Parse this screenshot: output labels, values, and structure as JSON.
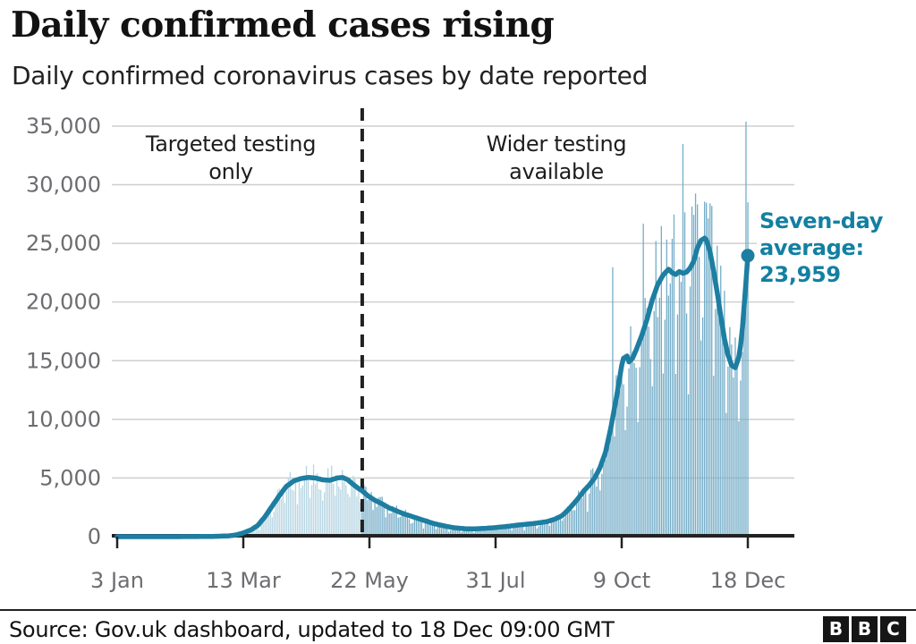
{
  "header": {
    "title": "Daily confirmed cases rising",
    "subtitle": "Daily confirmed coronavirus cases by date reported"
  },
  "annotations": {
    "targeted": {
      "line1": "Targeted testing",
      "line2": "only"
    },
    "wider": {
      "line1": "Wider testing",
      "line2": "available"
    },
    "seven_day": {
      "line1": "Seven-day",
      "line2": "average:",
      "line3": "23,959"
    }
  },
  "footer": {
    "source": "Source: Gov.uk dashboard, updated to 18 Dec 09:00 GMT",
    "logo": [
      "B",
      "B",
      "C"
    ]
  },
  "colors": {
    "accent_teal": "#1380A1",
    "line": "#1d7ea1",
    "bar_light": "#b7d6e3",
    "bar_dark": "#74adc8",
    "grid": "#cfcfcf",
    "axis": "#222222",
    "label_gray": "#6d6d71"
  },
  "chart_data": {
    "type": "bar",
    "title": "Daily confirmed cases rising",
    "subtitle": "Daily confirmed coronavirus cases by date reported",
    "grid": true,
    "x_axis": {
      "start_date": "3 Jan",
      "end_date": "18 Dec",
      "ticks": [
        {
          "label": "3 Jan",
          "day": 0
        },
        {
          "label": "13 Mar",
          "day": 70
        },
        {
          "label": "22 May",
          "day": 140
        },
        {
          "label": "31 Jul",
          "day": 210
        },
        {
          "label": "9 Oct",
          "day": 280
        },
        {
          "label": "18 Dec",
          "day": 350
        }
      ]
    },
    "y_axis": {
      "min": 0,
      "max": 35000,
      "ticks": [
        {
          "label": "0",
          "value": 0
        },
        {
          "label": "5,000",
          "value": 5000
        },
        {
          "label": "10,000",
          "value": 10000
        },
        {
          "label": "15,000",
          "value": 15000
        },
        {
          "label": "20,000",
          "value": 20000
        },
        {
          "label": "25,000",
          "value": 25000
        },
        {
          "label": "30,000",
          "value": 30000
        },
        {
          "label": "35,000",
          "value": 35000
        }
      ]
    },
    "divider_day": 136,
    "final_value": 23959,
    "series": [
      {
        "name": "Seven-day average",
        "type": "line",
        "anchors": [
          [
            0,
            0
          ],
          [
            30,
            0
          ],
          [
            45,
            10
          ],
          [
            55,
            30
          ],
          [
            62,
            70
          ],
          [
            66,
            150
          ],
          [
            70,
            320
          ],
          [
            74,
            560
          ],
          [
            78,
            950
          ],
          [
            82,
            1700
          ],
          [
            86,
            2600
          ],
          [
            90,
            3500
          ],
          [
            94,
            4300
          ],
          [
            98,
            4750
          ],
          [
            102,
            4950
          ],
          [
            106,
            5050
          ],
          [
            110,
            5000
          ],
          [
            114,
            4850
          ],
          [
            118,
            4800
          ],
          [
            122,
            5000
          ],
          [
            125,
            5050
          ],
          [
            128,
            4850
          ],
          [
            131,
            4450
          ],
          [
            134,
            4100
          ],
          [
            136,
            3900
          ],
          [
            139,
            3500
          ],
          [
            143,
            3100
          ],
          [
            147,
            2800
          ],
          [
            151,
            2450
          ],
          [
            155,
            2200
          ],
          [
            159,
            1950
          ],
          [
            163,
            1750
          ],
          [
            167,
            1550
          ],
          [
            171,
            1350
          ],
          [
            175,
            1150
          ],
          [
            179,
            1000
          ],
          [
            183,
            870
          ],
          [
            187,
            760
          ],
          [
            191,
            700
          ],
          [
            195,
            660
          ],
          [
            199,
            670
          ],
          [
            203,
            700
          ],
          [
            207,
            740
          ],
          [
            211,
            790
          ],
          [
            215,
            850
          ],
          [
            219,
            920
          ],
          [
            223,
            1000
          ],
          [
            227,
            1060
          ],
          [
            231,
            1120
          ],
          [
            235,
            1200
          ],
          [
            239,
            1300
          ],
          [
            243,
            1500
          ],
          [
            247,
            1800
          ],
          [
            251,
            2400
          ],
          [
            255,
            3100
          ],
          [
            259,
            3900
          ],
          [
            262,
            4400
          ],
          [
            265,
            5000
          ],
          [
            268,
            5900
          ],
          [
            271,
            7200
          ],
          [
            274,
            9300
          ],
          [
            277,
            11800
          ],
          [
            280,
            14600
          ],
          [
            281,
            15200
          ],
          [
            283,
            15400
          ],
          [
            284,
            14900
          ],
          [
            286,
            15200
          ],
          [
            288,
            15900
          ],
          [
            291,
            17100
          ],
          [
            294,
            18500
          ],
          [
            297,
            20200
          ],
          [
            300,
            21500
          ],
          [
            303,
            22300
          ],
          [
            306,
            22800
          ],
          [
            308,
            22500
          ],
          [
            310,
            22350
          ],
          [
            312,
            22600
          ],
          [
            314,
            22450
          ],
          [
            316,
            22550
          ],
          [
            318,
            22900
          ],
          [
            320,
            23500
          ],
          [
            322,
            24600
          ],
          [
            324,
            25250
          ],
          [
            326,
            25450
          ],
          [
            327,
            25300
          ],
          [
            329,
            24300
          ],
          [
            331,
            22700
          ],
          [
            333,
            20800
          ],
          [
            335,
            18800
          ],
          [
            337,
            16900
          ],
          [
            339,
            15500
          ],
          [
            341,
            14600
          ],
          [
            343,
            14400
          ],
          [
            345,
            15300
          ],
          [
            346,
            16300
          ],
          [
            347,
            17800
          ],
          [
            348,
            19800
          ],
          [
            349,
            21800
          ],
          [
            350,
            23959
          ]
        ]
      },
      {
        "name": "Daily confirmed cases",
        "type": "bar",
        "derived_from": "Seven-day average",
        "jitter": {
          "base": 0.8,
          "range": 0.45,
          "sunday_factor": 0.62,
          "monday_factor": 0.78
        },
        "outliers": [
          [
            275,
            22961
          ],
          [
            292,
            26688
          ],
          [
            314,
            33470
          ],
          [
            349,
            35383
          ],
          [
            350,
            28507
          ]
        ]
      }
    ]
  }
}
